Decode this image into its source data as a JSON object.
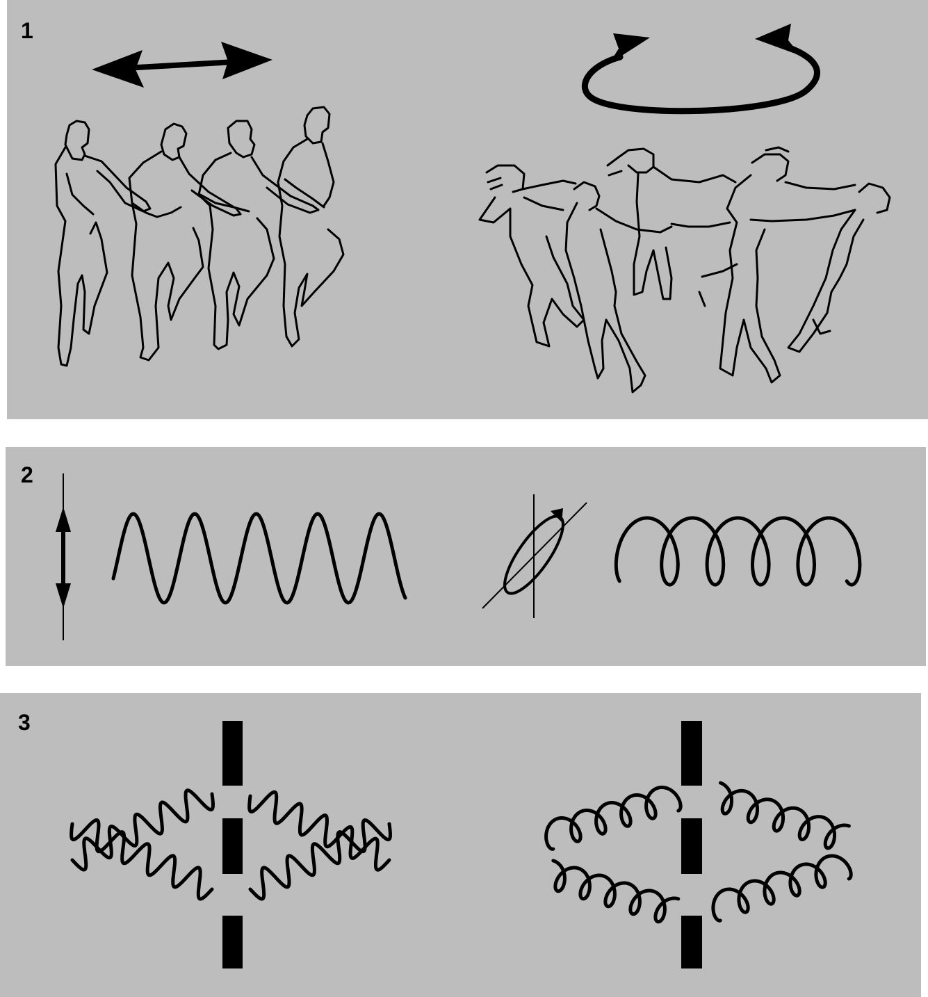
{
  "panels": [
    {
      "label": "1"
    },
    {
      "label": "2"
    },
    {
      "label": "3"
    }
  ],
  "icons": {
    "linear_arrow": "double-headed-arrow-icon",
    "circular_arrow": "circular-arrow-icon"
  },
  "colors": {
    "panel_bg": "#bdbdbd",
    "ink": "#000000"
  }
}
